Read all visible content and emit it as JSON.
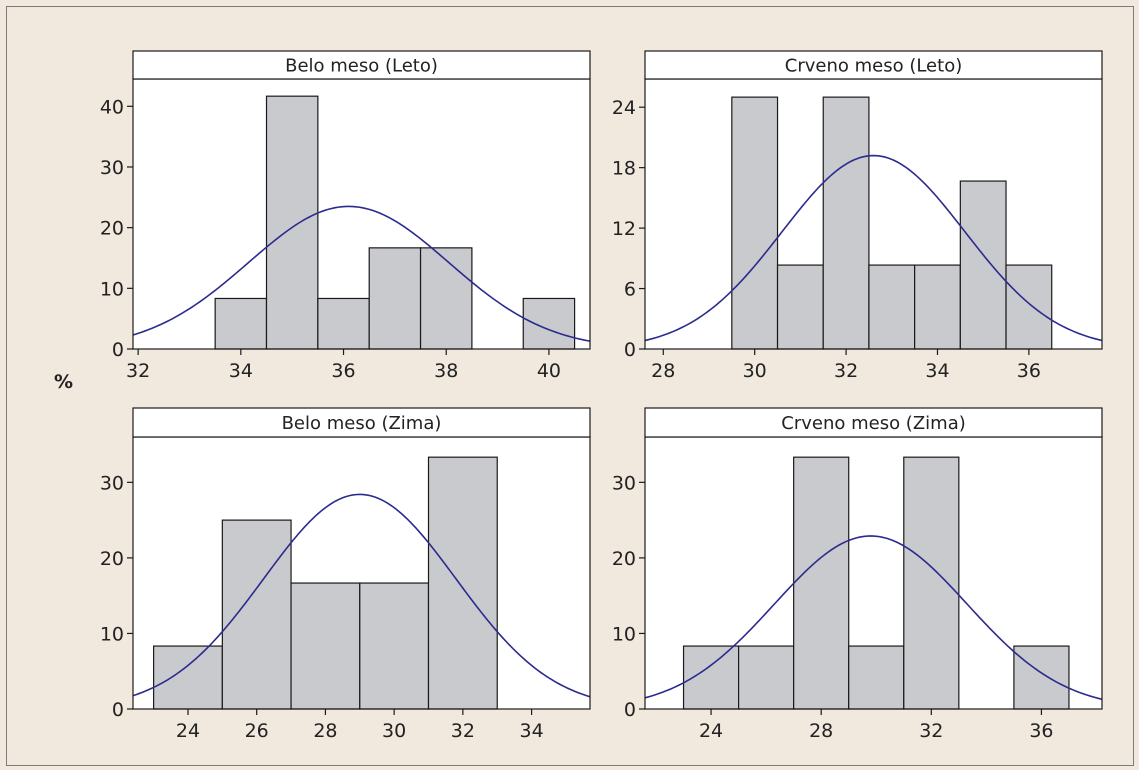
{
  "y_axis_label": "%",
  "colors": {
    "background": "#f1e8de",
    "bar_fill": "#c8cacd",
    "bar_stroke": "#1a1a1a",
    "curve": "#2b2b8f",
    "frame": "#1a1a1a"
  },
  "chart_data": [
    {
      "type": "bar",
      "title": "Belo meso  (Leto)",
      "bins": [
        [
          33.5,
          34.5,
          8.33
        ],
        [
          34.5,
          35.5,
          41.67
        ],
        [
          35.5,
          36.5,
          8.33
        ],
        [
          36.5,
          37.5,
          16.67
        ],
        [
          37.5,
          38.5,
          16.67
        ],
        [
          39.5,
          40.5,
          8.33
        ]
      ],
      "xlim": [
        31.9,
        40.8
      ],
      "ylim": [
        0,
        44.5
      ],
      "xticks": [
        32,
        34,
        36,
        38,
        40
      ],
      "yticks": [
        0,
        10,
        20,
        30,
        40
      ],
      "normal_curve": {
        "mean": 36.1,
        "sd": 1.95,
        "x_range": [
          31.9,
          40.8
        ],
        "peak": 23.5
      }
    },
    {
      "type": "bar",
      "title": "Crveno meso  (Leto)",
      "bins": [
        [
          29.5,
          30.5,
          25
        ],
        [
          30.5,
          31.5,
          8.33
        ],
        [
          31.5,
          32.5,
          25
        ],
        [
          32.5,
          33.5,
          8.33
        ],
        [
          33.5,
          34.5,
          8.33
        ],
        [
          34.5,
          35.5,
          16.67
        ],
        [
          35.5,
          36.5,
          8.33
        ]
      ],
      "xlim": [
        27.6,
        37.6
      ],
      "ylim": [
        0,
        26.8
      ],
      "xticks": [
        28,
        30,
        32,
        34,
        36
      ],
      "yticks": [
        0,
        6,
        12,
        18,
        24
      ],
      "normal_curve": {
        "mean": 32.6,
        "sd": 2.0,
        "x_range": [
          27.6,
          37.6
        ],
        "peak": 19.2
      }
    },
    {
      "type": "bar",
      "title": "Belo meso (Zima)",
      "bins": [
        [
          23,
          25,
          8.33
        ],
        [
          25,
          27,
          25
        ],
        [
          27,
          29,
          16.67
        ],
        [
          29,
          31,
          16.67
        ],
        [
          31,
          33,
          33.33
        ]
      ],
      "xlim": [
        22.4,
        35.7
      ],
      "ylim": [
        0,
        36
      ],
      "xticks": [
        24,
        26,
        28,
        30,
        32,
        34
      ],
      "yticks": [
        0,
        10,
        20,
        30
      ],
      "normal_curve": {
        "mean": 29.0,
        "sd": 2.8,
        "x_range": [
          22.4,
          35.7
        ],
        "peak": 28.4
      }
    },
    {
      "type": "bar",
      "title": "Crveno meso (Zima)",
      "bins": [
        [
          23,
          25,
          8.33
        ],
        [
          25,
          27,
          8.33
        ],
        [
          27,
          29,
          33.33
        ],
        [
          29,
          31,
          8.33
        ],
        [
          31,
          33,
          33.33
        ],
        [
          33,
          35,
          0
        ],
        [
          35,
          37,
          8.33
        ]
      ],
      "xlim": [
        21.6,
        38.2
      ],
      "ylim": [
        0,
        36
      ],
      "xticks": [
        24,
        28,
        32,
        36
      ],
      "yticks": [
        0,
        10,
        20,
        30
      ],
      "normal_curve": {
        "mean": 29.8,
        "sd": 3.5,
        "x_range": [
          21.6,
          38.2
        ],
        "peak": 22.9
      }
    }
  ]
}
